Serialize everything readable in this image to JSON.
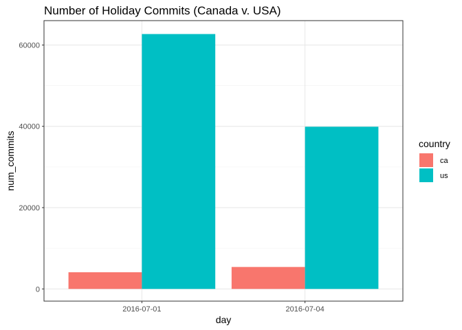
{
  "chart_data": {
    "type": "bar",
    "title": "Number of Holiday Commits (Canada v. USA)",
    "xlabel": "day",
    "ylabel": "num_commits",
    "categories": [
      "2016-07-01",
      "2016-07-04"
    ],
    "series": [
      {
        "name": "ca",
        "color": "#F8766D",
        "values": [
          4100,
          5400
        ]
      },
      {
        "name": "us",
        "color": "#00BFC4",
        "values": [
          62700,
          39900
        ]
      }
    ],
    "ylim": [
      -3000,
      66000
    ],
    "yticks": [
      0,
      20000,
      40000,
      60000
    ],
    "ytick_labels": [
      "0",
      "20000",
      "40000",
      "60000"
    ],
    "grid": true,
    "legend": {
      "title": "country",
      "position": "right",
      "items": [
        "ca",
        "us"
      ]
    }
  }
}
